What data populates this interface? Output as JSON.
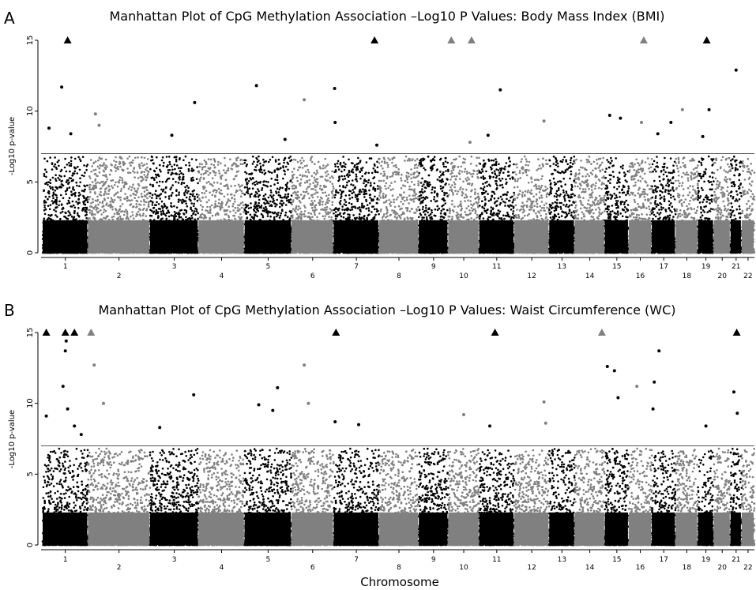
{
  "chart_data": [
    {
      "type": "scatter",
      "panel_label": "A",
      "title": "Manhattan Plot of CpG Methylation Association –Log10 P Values: Body Mass Index (BMI)",
      "ylabel": "-Log10 p-value",
      "xlabel": "",
      "ylim": [
        0,
        15
      ],
      "yticks": [
        0,
        5,
        10,
        15
      ],
      "threshold": 7,
      "chromosomes": [
        "1",
        "2",
        "3",
        "4",
        "5",
        "6",
        "7",
        "8",
        "9",
        "10",
        "11",
        "12",
        "13",
        "14",
        "15",
        "16",
        "17",
        "18",
        "19",
        "20",
        "21",
        "22"
      ],
      "colors": {
        "odd": "#000000",
        "even": "#808080",
        "threshold": "#555555"
      },
      "peaks": [
        {
          "chr": "1",
          "pos": 0.42,
          "y": 11.7
        },
        {
          "chr": "1",
          "pos": 0.62,
          "y": 8.4
        },
        {
          "chr": "1",
          "pos": 0.14,
          "y": 8.8
        },
        {
          "chr": "2",
          "pos": 0.12,
          "y": 9.8
        },
        {
          "chr": "2",
          "pos": 0.18,
          "y": 9.0
        },
        {
          "chr": "3",
          "pos": 0.45,
          "y": 8.3
        },
        {
          "chr": "3",
          "pos": 0.92,
          "y": 10.6
        },
        {
          "chr": "5",
          "pos": 0.25,
          "y": 11.8
        },
        {
          "chr": "5",
          "pos": 0.86,
          "y": 8.0
        },
        {
          "chr": "6",
          "pos": 0.3,
          "y": 10.8
        },
        {
          "chr": "7",
          "pos": 0.02,
          "y": 11.6
        },
        {
          "chr": "7",
          "pos": 0.03,
          "y": 9.2
        },
        {
          "chr": "7",
          "pos": 0.95,
          "y": 7.6
        },
        {
          "chr": "10",
          "pos": 0.7,
          "y": 7.8
        },
        {
          "chr": "11",
          "pos": 0.6,
          "y": 11.5
        },
        {
          "chr": "11",
          "pos": 0.25,
          "y": 8.3
        },
        {
          "chr": "12",
          "pos": 0.85,
          "y": 9.3
        },
        {
          "chr": "15",
          "pos": 0.2,
          "y": 9.7
        },
        {
          "chr": "15",
          "pos": 0.65,
          "y": 9.5
        },
        {
          "chr": "16",
          "pos": 0.55,
          "y": 9.2
        },
        {
          "chr": "17",
          "pos": 0.25,
          "y": 8.4
        },
        {
          "chr": "17",
          "pos": 0.8,
          "y": 9.2
        },
        {
          "chr": "18",
          "pos": 0.3,
          "y": 10.1
        },
        {
          "chr": "19",
          "pos": 0.7,
          "y": 10.1
        },
        {
          "chr": "19",
          "pos": 0.3,
          "y": 8.2
        },
        {
          "chr": "21",
          "pos": 0.5,
          "y": 12.9
        }
      ],
      "markers": [
        {
          "chr": "1",
          "pos": 0.55,
          "color": "#000000"
        },
        {
          "chr": "7",
          "pos": 0.9,
          "color": "#000000"
        },
        {
          "chr": "10",
          "pos": 0.1,
          "color": "#808080"
        },
        {
          "chr": "10",
          "pos": 0.75,
          "color": "#808080"
        },
        {
          "chr": "16",
          "pos": 0.65,
          "color": "#808080"
        },
        {
          "chr": "19",
          "pos": 0.55,
          "color": "#000000"
        }
      ]
    },
    {
      "type": "scatter",
      "panel_label": "B",
      "title": "Manhattan Plot of CpG Methylation Association –Log10 P Values: Waist Circumference (WC)",
      "ylabel": "-Log10 p-value",
      "xlabel": "Chromosome",
      "ylim": [
        0,
        15
      ],
      "yticks": [
        0,
        5,
        10,
        15
      ],
      "threshold": 7,
      "chromosomes": [
        "1",
        "2",
        "3",
        "4",
        "5",
        "6",
        "7",
        "8",
        "9",
        "10",
        "11",
        "12",
        "13",
        "14",
        "15",
        "16",
        "17",
        "18",
        "19",
        "20",
        "21",
        "22"
      ],
      "colors": {
        "odd": "#000000",
        "even": "#808080",
        "threshold": "#555555"
      },
      "peaks": [
        {
          "chr": "1",
          "pos": 0.08,
          "y": 9.1
        },
        {
          "chr": "1",
          "pos": 0.45,
          "y": 11.2
        },
        {
          "chr": "1",
          "pos": 0.5,
          "y": 13.7
        },
        {
          "chr": "1",
          "pos": 0.52,
          "y": 14.4
        },
        {
          "chr": "1",
          "pos": 0.55,
          "y": 9.6
        },
        {
          "chr": "1",
          "pos": 0.7,
          "y": 8.4
        },
        {
          "chr": "1",
          "pos": 0.85,
          "y": 7.8
        },
        {
          "chr": "2",
          "pos": 0.1,
          "y": 12.7
        },
        {
          "chr": "2",
          "pos": 0.25,
          "y": 10.0
        },
        {
          "chr": "3",
          "pos": 0.2,
          "y": 8.3
        },
        {
          "chr": "3",
          "pos": 0.9,
          "y": 10.6
        },
        {
          "chr": "5",
          "pos": 0.3,
          "y": 9.9
        },
        {
          "chr": "5",
          "pos": 0.7,
          "y": 11.1
        },
        {
          "chr": "5",
          "pos": 0.6,
          "y": 9.5
        },
        {
          "chr": "6",
          "pos": 0.3,
          "y": 12.7
        },
        {
          "chr": "6",
          "pos": 0.4,
          "y": 10.0
        },
        {
          "chr": "7",
          "pos": 0.03,
          "y": 8.7
        },
        {
          "chr": "7",
          "pos": 0.55,
          "y": 8.5
        },
        {
          "chr": "10",
          "pos": 0.5,
          "y": 9.2
        },
        {
          "chr": "11",
          "pos": 0.3,
          "y": 8.4
        },
        {
          "chr": "12",
          "pos": 0.85,
          "y": 10.1
        },
        {
          "chr": "12",
          "pos": 0.9,
          "y": 8.6
        },
        {
          "chr": "15",
          "pos": 0.1,
          "y": 12.6
        },
        {
          "chr": "15",
          "pos": 0.4,
          "y": 12.3
        },
        {
          "chr": "15",
          "pos": 0.55,
          "y": 10.4
        },
        {
          "chr": "16",
          "pos": 0.35,
          "y": 11.2
        },
        {
          "chr": "17",
          "pos": 0.3,
          "y": 13.7
        },
        {
          "chr": "17",
          "pos": 0.1,
          "y": 11.5
        },
        {
          "chr": "17",
          "pos": 0.05,
          "y": 9.6
        },
        {
          "chr": "19",
          "pos": 0.5,
          "y": 8.4
        },
        {
          "chr": "21",
          "pos": 0.3,
          "y": 10.8
        },
        {
          "chr": "21",
          "pos": 0.6,
          "y": 9.3
        }
      ],
      "markers": [
        {
          "chr": "1",
          "pos": 0.08,
          "color": "#000000"
        },
        {
          "chr": "1",
          "pos": 0.5,
          "color": "#000000"
        },
        {
          "chr": "1",
          "pos": 0.7,
          "color": "#000000"
        },
        {
          "chr": "2",
          "pos": 0.05,
          "color": "#808080"
        },
        {
          "chr": "7",
          "pos": 0.05,
          "color": "#000000"
        },
        {
          "chr": "11",
          "pos": 0.45,
          "color": "#000000"
        },
        {
          "chr": "14",
          "pos": 0.9,
          "color": "#808080"
        },
        {
          "chr": "21",
          "pos": 0.55,
          "color": "#000000"
        }
      ]
    }
  ]
}
